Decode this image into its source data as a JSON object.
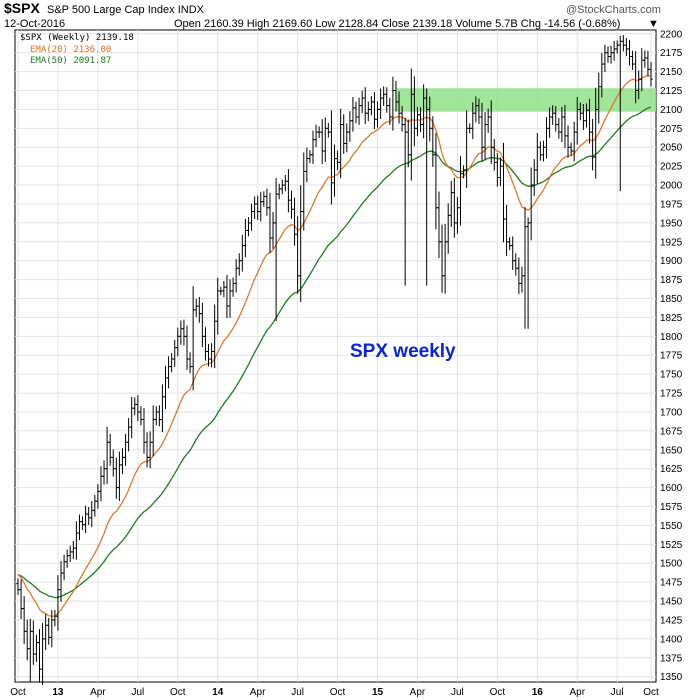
{
  "header": {
    "symbol": "$SPX",
    "name": "S&P 500 Large Cap Index",
    "exchange": "INDX",
    "date": "12-Oct-2016",
    "ohlc": "Open 2160.39   High 2169.60   Low 2128.84   Close 2139.18   Volume 5.7B   Chg -14.56 (-0.68%)",
    "change_marker": "▼",
    "brand": "@StockCharts.com"
  },
  "legend": {
    "price_label": "$SPX (Weekly) 2139.18",
    "ema20_label": "EMA(20) 2136.00",
    "ema50_label": "EMA(50) 2091.87"
  },
  "annotation": "SPX weekly",
  "colors": {
    "price": "#000000",
    "ema20": "#e86f1c",
    "ema50": "#1e7f1e",
    "zone": "#90e28a",
    "annotation": "#0b24d6",
    "grid": "#e2e2e2"
  },
  "chart_data": {
    "type": "ohlc",
    "title": "$SPX S&P 500 Large Cap Index INDX",
    "period": "weekly",
    "x_ticks": [
      "Oct",
      "13",
      "Apr",
      "Jul",
      "Oct",
      "14",
      "Apr",
      "Jul",
      "Oct",
      "15",
      "Apr",
      "Jul",
      "Oct",
      "16",
      "Apr",
      "Jul",
      "Oct"
    ],
    "y_ticks": [
      1350,
      1375,
      1400,
      1425,
      1450,
      1475,
      1500,
      1525,
      1550,
      1575,
      1600,
      1625,
      1650,
      1675,
      1700,
      1725,
      1750,
      1775,
      1800,
      1825,
      1850,
      1875,
      1900,
      1925,
      1950,
      1975,
      2000,
      2025,
      2050,
      2075,
      2100,
      2125,
      2150,
      2175,
      2200
    ],
    "ylim": [
      1343,
      2205
    ],
    "resistance_zone": [
      2097,
      2128
    ],
    "closes": [
      1465,
      1440,
      1410,
      1387,
      1410,
      1380,
      1395,
      1360,
      1400,
      1418,
      1402,
      1425,
      1430,
      1465,
      1487,
      1502,
      1510,
      1515,
      1520,
      1540,
      1555,
      1551,
      1565,
      1560,
      1570,
      1582,
      1595,
      1615,
      1625,
      1660,
      1640,
      1625,
      1600,
      1630,
      1640,
      1660,
      1680,
      1705,
      1710,
      1700,
      1690,
      1660,
      1640,
      1660,
      1690,
      1700,
      1690,
      1720,
      1745,
      1760,
      1770,
      1785,
      1800,
      1810,
      1800,
      1770,
      1760,
      1835,
      1840,
      1830,
      1800,
      1780,
      1770,
      1780,
      1820,
      1860,
      1860,
      1865,
      1840,
      1860,
      1870,
      1890,
      1900,
      1920,
      1940,
      1950,
      1965,
      1975,
      1965,
      1978,
      1985,
      1970,
      1930,
      1950,
      1988,
      1995,
      2000,
      2005,
      1980,
      1968,
      1935,
      1880,
      1965,
      2018,
      2035,
      2040,
      2060,
      2070,
      2070,
      2045,
      2075,
      2070,
      2003,
      2035,
      2030,
      2080,
      2055,
      2070,
      2085,
      2102,
      2090,
      2105,
      2115,
      2095,
      2100,
      2110,
      2087,
      2100,
      2115,
      2120,
      2105,
      2090,
      2125,
      2110,
      2095,
      2080,
      2070,
      2040,
      2120,
      2075,
      2093,
      2080,
      2115,
      2100,
      2075,
      2040,
      1970,
      1925,
      1880,
      1925,
      1960,
      1990,
      1950,
      1970,
      2015,
      2020,
      2075,
      2075,
      2095,
      2105,
      2090,
      2050,
      2080,
      2090,
      2050,
      2030,
      2010,
      2025,
      1955,
      1925,
      1920,
      1900,
      1890,
      1870,
      1880,
      1945,
      1950,
      2000,
      2020,
      2050,
      2040,
      2050,
      2075,
      2090,
      2095,
      2080,
      2070,
      2090,
      2065,
      2050,
      2045,
      2070,
      2100,
      2095,
      2085,
      2099,
      2070,
      2037,
      2100,
      2130,
      2160,
      2175,
      2170,
      2175,
      2180,
      2185,
      2190,
      2185,
      2180,
      2170,
      2160,
      2125,
      2140,
      2165,
      2168,
      2153,
      2140
    ],
    "series": [
      {
        "name": "$SPX (Weekly)",
        "last": 2139.18
      },
      {
        "name": "EMA(20)",
        "last": 2136.0
      },
      {
        "name": "EMA(50)",
        "last": 2091.87
      }
    ]
  }
}
